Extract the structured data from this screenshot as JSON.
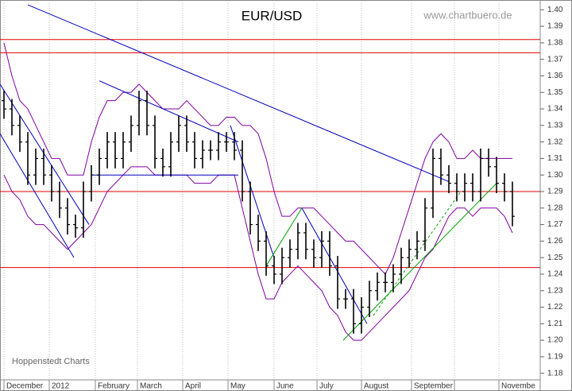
{
  "chart_data": {
    "type": "ohlc",
    "title": "EUR/USD",
    "source": "www.chartbuero.de",
    "credit": "Hoppenstedt Charts",
    "xlim": [
      0,
      68
    ],
    "ylim": [
      1.176,
      1.404
    ],
    "yticks": [
      1.18,
      1.19,
      {
        "value": 1.2,
        "label": "1.20"
      },
      1.21,
      1.22,
      1.23,
      1.24,
      1.25,
      1.26,
      1.27,
      1.28,
      1.29,
      {
        "value": 1.3,
        "label": "1.30"
      },
      1.31,
      1.32,
      1.33,
      1.34,
      1.35,
      1.36,
      1.37,
      1.38,
      1.39,
      {
        "value": 1.4,
        "label": "1.40"
      }
    ],
    "xticks": [
      {
        "value": 0.5,
        "label": "December"
      },
      {
        "value": 6.2,
        "label": "2012"
      },
      {
        "value": 12.0,
        "label": "February"
      },
      {
        "value": 17.3,
        "label": "March"
      },
      {
        "value": 23.0,
        "label": "April"
      },
      {
        "value": 28.7,
        "label": "May"
      },
      {
        "value": 34.5,
        "label": "June"
      },
      {
        "value": 39.9,
        "label": "July"
      },
      {
        "value": 45.5,
        "label": "August"
      },
      {
        "value": 51.8,
        "label": "September"
      },
      {
        "value": 57.2,
        "label": null
      },
      {
        "value": 62.8,
        "label": "Novembe"
      }
    ],
    "grid": true,
    "color": "#000000",
    "x": [
      0.5,
      1.5,
      2.5,
      3.5,
      4.5,
      5.5,
      6.5,
      7.5,
      8.5,
      9.5,
      10.5,
      11.5,
      12.5,
      13.5,
      14.5,
      15.5,
      16.5,
      17.5,
      18.5,
      19.5,
      20.5,
      21.5,
      22.5,
      23.5,
      24.5,
      25.5,
      26.5,
      27.5,
      28.5,
      29.5,
      30.5,
      31.5,
      32.5,
      33.5,
      34.5,
      35.5,
      36.5,
      37.5,
      38.5,
      39.5,
      40.5,
      41.5,
      42.5,
      43.5,
      44.5,
      45.5,
      46.5,
      47.5,
      48.5,
      49.5,
      50.5,
      51.5,
      52.5,
      53.5,
      54.5,
      55.5,
      56.5,
      57.5,
      58.5,
      59.5,
      60.5,
      61.5,
      62.5,
      63.5,
      64.5
    ],
    "open": [
      1.345,
      1.34,
      1.33,
      1.32,
      1.3,
      1.31,
      1.3,
      1.29,
      1.28,
      1.27,
      1.268,
      1.29,
      1.3,
      1.31,
      1.32,
      1.31,
      1.32,
      1.33,
      1.345,
      1.33,
      1.31,
      1.305,
      1.32,
      1.33,
      1.32,
      1.31,
      1.315,
      1.315,
      1.32,
      1.32,
      1.315,
      1.29,
      1.27,
      1.26,
      1.245,
      1.24,
      1.25,
      1.255,
      1.265,
      1.255,
      1.25,
      1.26,
      1.245,
      1.225,
      1.225,
      1.21,
      1.22,
      1.23,
      1.235,
      1.235,
      1.24,
      1.25,
      1.255,
      1.26,
      1.28,
      1.31,
      1.3,
      1.295,
      1.29,
      1.295,
      1.29,
      1.31,
      1.305,
      1.295,
      1.29
    ],
    "high": [
      1.351,
      1.346,
      1.336,
      1.326,
      1.316,
      1.316,
      1.306,
      1.296,
      1.286,
      1.276,
      1.296,
      1.306,
      1.316,
      1.326,
      1.326,
      1.326,
      1.336,
      1.351,
      1.351,
      1.336,
      1.316,
      1.326,
      1.336,
      1.336,
      1.326,
      1.321,
      1.321,
      1.326,
      1.326,
      1.326,
      1.321,
      1.296,
      1.276,
      1.266,
      1.251,
      1.256,
      1.261,
      1.271,
      1.271,
      1.261,
      1.266,
      1.266,
      1.251,
      1.231,
      1.231,
      1.226,
      1.236,
      1.241,
      1.241,
      1.246,
      1.256,
      1.261,
      1.266,
      1.286,
      1.316,
      1.316,
      1.306,
      1.301,
      1.301,
      1.301,
      1.316,
      1.316,
      1.311,
      1.301,
      1.296
    ],
    "low": [
      1.334,
      1.324,
      1.314,
      1.294,
      1.294,
      1.294,
      1.284,
      1.274,
      1.264,
      1.262,
      1.262,
      1.284,
      1.294,
      1.304,
      1.304,
      1.304,
      1.314,
      1.324,
      1.324,
      1.304,
      1.299,
      1.299,
      1.314,
      1.314,
      1.304,
      1.304,
      1.309,
      1.309,
      1.314,
      1.309,
      1.284,
      1.264,
      1.254,
      1.239,
      1.234,
      1.234,
      1.244,
      1.249,
      1.249,
      1.244,
      1.244,
      1.239,
      1.219,
      1.219,
      1.204,
      1.204,
      1.214,
      1.224,
      1.229,
      1.229,
      1.234,
      1.244,
      1.249,
      1.254,
      1.274,
      1.294,
      1.289,
      1.284,
      1.284,
      1.284,
      1.284,
      1.299,
      1.289,
      1.284,
      1.269
    ],
    "close": [
      1.34,
      1.33,
      1.32,
      1.3,
      1.31,
      1.3,
      1.29,
      1.28,
      1.27,
      1.268,
      1.29,
      1.3,
      1.31,
      1.32,
      1.31,
      1.32,
      1.33,
      1.345,
      1.33,
      1.31,
      1.305,
      1.32,
      1.33,
      1.32,
      1.31,
      1.315,
      1.315,
      1.32,
      1.32,
      1.315,
      1.29,
      1.27,
      1.26,
      1.245,
      1.24,
      1.25,
      1.255,
      1.265,
      1.255,
      1.25,
      1.26,
      1.245,
      1.225,
      1.225,
      1.21,
      1.22,
      1.23,
      1.235,
      1.235,
      1.24,
      1.25,
      1.255,
      1.26,
      1.28,
      1.31,
      1.3,
      1.295,
      1.29,
      1.295,
      1.29,
      1.31,
      1.305,
      1.295,
      1.29,
      1.275
    ],
    "bands": [
      {
        "color": "#8000a0",
        "values": [
          1.38,
          1.36,
          1.345,
          1.34,
          1.33,
          1.32,
          1.31,
          1.31,
          1.3,
          1.3,
          1.3,
          1.32,
          1.335,
          1.345,
          1.345,
          1.35,
          1.35,
          1.355,
          1.35,
          1.345,
          1.34,
          1.34,
          1.34,
          1.345,
          1.34,
          1.335,
          1.33,
          1.33,
          1.335,
          1.335,
          1.33,
          1.33,
          1.325,
          1.31,
          1.29,
          1.275,
          1.275,
          1.28,
          1.28,
          1.28,
          1.275,
          1.27,
          1.265,
          1.26,
          1.26,
          1.255,
          1.25,
          1.245,
          1.24,
          1.25,
          1.265,
          1.28,
          1.295,
          1.31,
          1.32,
          1.325,
          1.32,
          1.31,
          1.31,
          1.315,
          1.31,
          1.31,
          1.31,
          1.31,
          1.31
        ]
      },
      {
        "color": "#8000a0",
        "values": [
          1.3,
          1.29,
          1.285,
          1.275,
          1.27,
          1.27,
          1.265,
          1.26,
          1.255,
          1.26,
          1.265,
          1.27,
          1.28,
          1.29,
          1.295,
          1.3,
          1.305,
          1.305,
          1.305,
          1.3,
          1.3,
          1.3,
          1.3,
          1.3,
          1.295,
          1.295,
          1.295,
          1.3,
          1.3,
          1.3,
          1.28,
          1.26,
          1.24,
          1.225,
          1.225,
          1.235,
          1.24,
          1.245,
          1.24,
          1.235,
          1.23,
          1.22,
          1.215,
          1.205,
          1.2,
          1.2,
          1.205,
          1.21,
          1.215,
          1.22,
          1.225,
          1.23,
          1.24,
          1.25,
          1.255,
          1.265,
          1.275,
          1.28,
          1.28,
          1.275,
          1.28,
          1.28,
          1.28,
          1.275,
          1.265
        ]
      }
    ],
    "hlines": {
      "color": "#e00000",
      "values": [
        1.382,
        1.374,
        1.29,
        1.244
      ]
    },
    "trendlines": [
      {
        "color": "#0000c0",
        "x": [
          3.5,
          56.5
        ],
        "y": [
          1.403,
          1.296
        ]
      },
      {
        "color": "#0000c0",
        "x": [
          0,
          11.2
        ],
        "y": [
          1.355,
          1.27
        ]
      },
      {
        "color": "#0000c0",
        "x": [
          0,
          9.3
        ],
        "y": [
          1.325,
          1.25
        ]
      },
      {
        "color": "#0000c0",
        "x": [
          12.5,
          30
        ],
        "y": [
          1.357,
          1.32
        ]
      },
      {
        "color": "#0000c0",
        "x": [
          11.8,
          30
        ],
        "y": [
          1.3,
          1.3
        ]
      },
      {
        "color": "#0000c0",
        "x": [
          29,
          34.5
        ],
        "y": [
          1.33,
          1.25
        ]
      },
      {
        "color": "#0000c0",
        "x": [
          38,
          46.2
        ],
        "y": [
          1.28,
          1.21
        ]
      },
      {
        "color": "#00a000",
        "x": [
          33.5,
          38
        ],
        "y": [
          1.245,
          1.28
        ]
      },
      {
        "color": "#00a000",
        "x": [
          43.2,
          62.5
        ],
        "y": [
          1.2,
          1.295
        ]
      },
      {
        "color": "#00a000",
        "x": [
          47,
          58
        ],
        "y": [
          1.215,
          1.29
        ],
        "dashed": true
      }
    ]
  }
}
